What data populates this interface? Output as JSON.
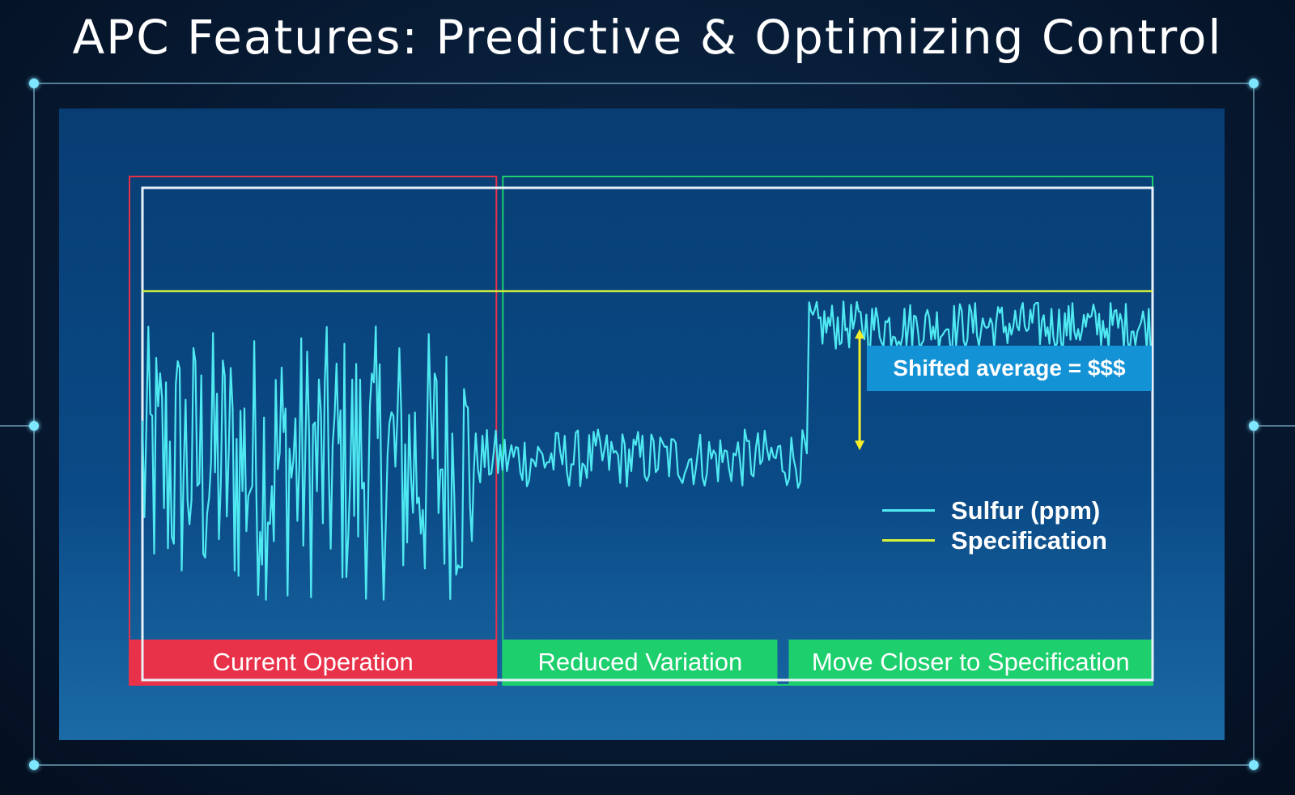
{
  "slide": {
    "title": "APC Features: Predictive & Optimizing Control"
  },
  "colors": {
    "sulfur": "#4fe9f2",
    "specification": "#d6f23a",
    "current_operation": "#e8324a",
    "reduced_variation": "#1ecf6e",
    "annotation": "#1492d6",
    "arrow": "#f5ee2a"
  },
  "chart_data": {
    "type": "line",
    "title": "",
    "xlabel": "",
    "ylabel": "",
    "x_range": [
      0,
      1000
    ],
    "ylim": [
      0,
      100
    ],
    "grid": false,
    "legend_position": "bottom-right",
    "regions": [
      {
        "label": "Current Operation",
        "x_start": 0,
        "x_end": 352
      },
      {
        "label": "Reduced Variation",
        "x_start": 352,
        "x_end": 627
      },
      {
        "label": "Move Closer to Specification",
        "x_start": 627,
        "x_end": 1000
      }
    ],
    "annotation": {
      "text": "Shifted average = $$$",
      "x": 710,
      "y_from": 47,
      "y_to": 71
    },
    "series": [
      {
        "name": "Sulfur (ppm)",
        "segments": [
          {
            "x_start": 0,
            "x_end": 330,
            "mean": 44,
            "amplitude": 28,
            "points": 170
          },
          {
            "x_start": 330,
            "x_end": 660,
            "mean": 45,
            "amplitude": 6,
            "points": 150
          },
          {
            "x_start": 660,
            "x_end": 1000,
            "mean": 72,
            "amplitude": 5,
            "points": 180
          }
        ]
      },
      {
        "name": "Specification",
        "constant_y": 79
      }
    ]
  }
}
